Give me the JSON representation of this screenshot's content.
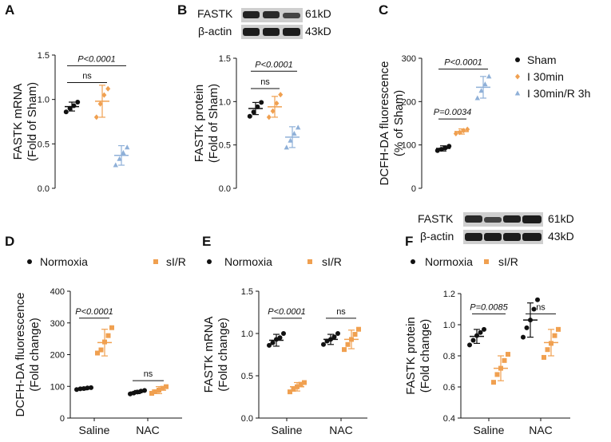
{
  "colors": {
    "sham": "#111111",
    "i30": "#f0a050",
    "i30r3h": "#8fb0d8",
    "normoxia": "#111111",
    "sir": "#f0a050"
  },
  "legend_top": [
    {
      "label": "Sham",
      "color": "#111111",
      "marker": "circle"
    },
    {
      "label": "I 30min",
      "color": "#f0a050",
      "marker": "diamond"
    },
    {
      "label": "I 30min/R 3h",
      "color": "#8fb0d8",
      "marker": "triangle"
    }
  ],
  "legend_bottom": {
    "normoxia": "Normoxia",
    "sir": "sI/R"
  },
  "blots": {
    "b": {
      "rows": [
        {
          "label": "FASTK",
          "kd": "61kD"
        },
        {
          "label": "β-actin",
          "kd": "43kD"
        }
      ]
    },
    "f": {
      "rows": [
        {
          "label": "FASTK",
          "kd": "61kD"
        },
        {
          "label": "β-actin",
          "kd": "43kD"
        }
      ]
    }
  },
  "chart_data": [
    {
      "id": "A",
      "type": "scatter",
      "ylabel": [
        "FASTK mRNA",
        "(Fold of Sham)"
      ],
      "ylim": [
        0,
        1.5
      ],
      "yticks": [
        "0.0",
        "0.5",
        "1.0",
        "1.5"
      ],
      "groups": [
        {
          "name": "Sham",
          "mean": 0.92,
          "sd": 0.05,
          "points": [
            0.86,
            0.9,
            0.93,
            0.97
          ],
          "marker": "circle",
          "color": "#111111"
        },
        {
          "name": "I 30min",
          "mean": 0.98,
          "sd": 0.18,
          "points": [
            0.8,
            0.95,
            1.05,
            1.12
          ],
          "marker": "diamond",
          "color": "#f0a050"
        },
        {
          "name": "I 30min/R 3h",
          "mean": 0.37,
          "sd": 0.11,
          "points": [
            0.26,
            0.33,
            0.4,
            0.46
          ],
          "marker": "triangle",
          "color": "#8fb0d8"
        }
      ],
      "sig": [
        {
          "from": 0,
          "to": 1,
          "label": "ns",
          "y": 1.19,
          "italic": false
        },
        {
          "from": 0,
          "to": 2,
          "label": "P<0.0001",
          "y": 1.38,
          "italic": true
        }
      ]
    },
    {
      "id": "B",
      "type": "scatter",
      "ylabel": [
        "FASTK protein",
        "(Fold of Sham)"
      ],
      "ylim": [
        0,
        1.5
      ],
      "yticks": [
        "0.0",
        "0.5",
        "1.0",
        "1.5"
      ],
      "groups": [
        {
          "name": "Sham",
          "mean": 0.92,
          "sd": 0.07,
          "points": [
            0.83,
            0.88,
            0.94,
            0.99
          ],
          "marker": "circle",
          "color": "#111111"
        },
        {
          "name": "I 30min",
          "mean": 0.94,
          "sd": 0.12,
          "points": [
            0.82,
            0.89,
            0.98,
            1.08
          ],
          "marker": "diamond",
          "color": "#f0a050"
        },
        {
          "name": "I 30min/R 3h",
          "mean": 0.59,
          "sd": 0.12,
          "points": [
            0.47,
            0.55,
            0.63,
            0.7
          ],
          "marker": "triangle",
          "color": "#8fb0d8"
        }
      ],
      "sig": [
        {
          "from": 0,
          "to": 1,
          "label": "ns",
          "y": 1.15,
          "italic": false
        },
        {
          "from": 0,
          "to": 2,
          "label": "P<0.0001",
          "y": 1.35,
          "italic": true
        }
      ]
    },
    {
      "id": "C",
      "type": "scatter",
      "ylabel": [
        "DCFH-DA fluorescence",
        "(% of Sham)"
      ],
      "ylim": [
        0,
        300
      ],
      "yticks": [
        "0",
        "100",
        "200",
        "300"
      ],
      "groups": [
        {
          "name": "Sham",
          "mean": 92,
          "sd": 6,
          "points": [
            87,
            90,
            93,
            97
          ],
          "marker": "circle",
          "color": "#111111"
        },
        {
          "name": "I 30min",
          "mean": 131,
          "sd": 6,
          "points": [
            126,
            129,
            133,
            136
          ],
          "marker": "diamond",
          "color": "#f0a050"
        },
        {
          "name": "I 30min/R 3h",
          "mean": 233,
          "sd": 25,
          "points": [
            208,
            225,
            240,
            258
          ],
          "marker": "triangle",
          "color": "#8fb0d8"
        }
      ],
      "sig": [
        {
          "from": 0,
          "to": 1,
          "label": "P=0.0034",
          "y": 160,
          "italic": true
        },
        {
          "from": 0,
          "to": 2,
          "label": "P<0.0001",
          "y": 275,
          "italic": true
        }
      ]
    },
    {
      "id": "D",
      "type": "scatter",
      "ylabel": [
        "DCFH-DA fluorescence",
        "(Fold change)"
      ],
      "ylim": [
        0,
        400
      ],
      "yticks": [
        "0",
        "100",
        "200",
        "300",
        "400"
      ],
      "categories": [
        "Saline",
        "NAC"
      ],
      "groups": [
        {
          "cat": 0,
          "name": "Normoxia",
          "mean": 93,
          "sd": 4,
          "points": [
            90,
            92,
            93,
            95,
            96
          ],
          "marker": "circle",
          "color": "#111111"
        },
        {
          "cat": 0,
          "name": "sI/R",
          "mean": 238,
          "sd": 42,
          "points": [
            205,
            215,
            240,
            260,
            285
          ],
          "marker": "square",
          "color": "#f0a050"
        },
        {
          "cat": 1,
          "name": "Normoxia",
          "mean": 82,
          "sd": 5,
          "points": [
            76,
            79,
            82,
            85,
            87
          ],
          "marker": "circle",
          "color": "#111111"
        },
        {
          "cat": 1,
          "name": "sI/R",
          "mean": 88,
          "sd": 11,
          "points": [
            78,
            83,
            88,
            94,
            99
          ],
          "marker": "square",
          "color": "#f0a050"
        }
      ],
      "sig": [
        {
          "from": 0,
          "to": 1,
          "label": "P<0.0001",
          "y": 315,
          "italic": true
        },
        {
          "from": 2,
          "to": 3,
          "label": "ns",
          "y": 118,
          "italic": false
        }
      ]
    },
    {
      "id": "E",
      "type": "scatter",
      "ylabel": [
        "FASTK mRNA",
        "(Fold change)"
      ],
      "ylim": [
        0,
        1.5
      ],
      "yticks": [
        "0.0",
        "0.5",
        "1.0",
        "1.5"
      ],
      "categories": [
        "Saline",
        "NAC"
      ],
      "groups": [
        {
          "cat": 0,
          "name": "Normoxia",
          "mean": 0.92,
          "sd": 0.07,
          "points": [
            0.86,
            0.89,
            0.93,
            0.95,
            1.0
          ],
          "marker": "circle",
          "color": "#111111"
        },
        {
          "cat": 0,
          "name": "sI/R",
          "mean": 0.37,
          "sd": 0.05,
          "points": [
            0.31,
            0.34,
            0.37,
            0.4,
            0.42
          ],
          "marker": "square",
          "color": "#f0a050"
        },
        {
          "cat": 1,
          "name": "Normoxia",
          "mean": 0.93,
          "sd": 0.06,
          "points": [
            0.87,
            0.91,
            0.93,
            0.96,
            1.0
          ],
          "marker": "circle",
          "color": "#111111"
        },
        {
          "cat": 1,
          "name": "sI/R",
          "mean": 0.93,
          "sd": 0.11,
          "points": [
            0.81,
            0.87,
            0.93,
            0.99,
            1.05
          ],
          "marker": "square",
          "color": "#f0a050"
        }
      ],
      "sig": [
        {
          "from": 0,
          "to": 1,
          "label": "P<0.0001",
          "y": 1.18,
          "italic": true
        },
        {
          "from": 2,
          "to": 3,
          "label": "ns",
          "y": 1.18,
          "italic": false
        }
      ]
    },
    {
      "id": "F",
      "type": "scatter",
      "ylabel": [
        "FASTK protein",
        "(Fold change)"
      ],
      "ylim": [
        0.4,
        1.2
      ],
      "yticks": [
        "0.4",
        "0.6",
        "0.8",
        "1.0",
        "1.2"
      ],
      "categories": [
        "Saline",
        "NAC"
      ],
      "groups": [
        {
          "cat": 0,
          "name": "Normoxia",
          "mean": 0.925,
          "sd": 0.045,
          "points": [
            0.87,
            0.9,
            0.93,
            0.95,
            0.97
          ],
          "marker": "circle",
          "color": "#111111"
        },
        {
          "cat": 0,
          "name": "sI/R",
          "mean": 0.72,
          "sd": 0.08,
          "points": [
            0.63,
            0.68,
            0.72,
            0.77,
            0.81
          ],
          "marker": "square",
          "color": "#f0a050"
        },
        {
          "cat": 1,
          "name": "Normoxia",
          "mean": 1.03,
          "sd": 0.11,
          "points": [
            0.92,
            0.98,
            1.03,
            1.1,
            1.16
          ],
          "marker": "circle",
          "color": "#111111"
        },
        {
          "cat": 1,
          "name": "sI/R",
          "mean": 0.885,
          "sd": 0.085,
          "points": [
            0.79,
            0.84,
            0.88,
            0.93,
            0.97
          ],
          "marker": "square",
          "color": "#f0a050"
        }
      ],
      "sig": [
        {
          "from": 0,
          "to": 1,
          "label": "P=0.0085",
          "y": 1.07,
          "italic": true
        },
        {
          "from": 2,
          "to": 3,
          "label": "ns",
          "y": 1.07,
          "italic": false
        }
      ]
    }
  ]
}
